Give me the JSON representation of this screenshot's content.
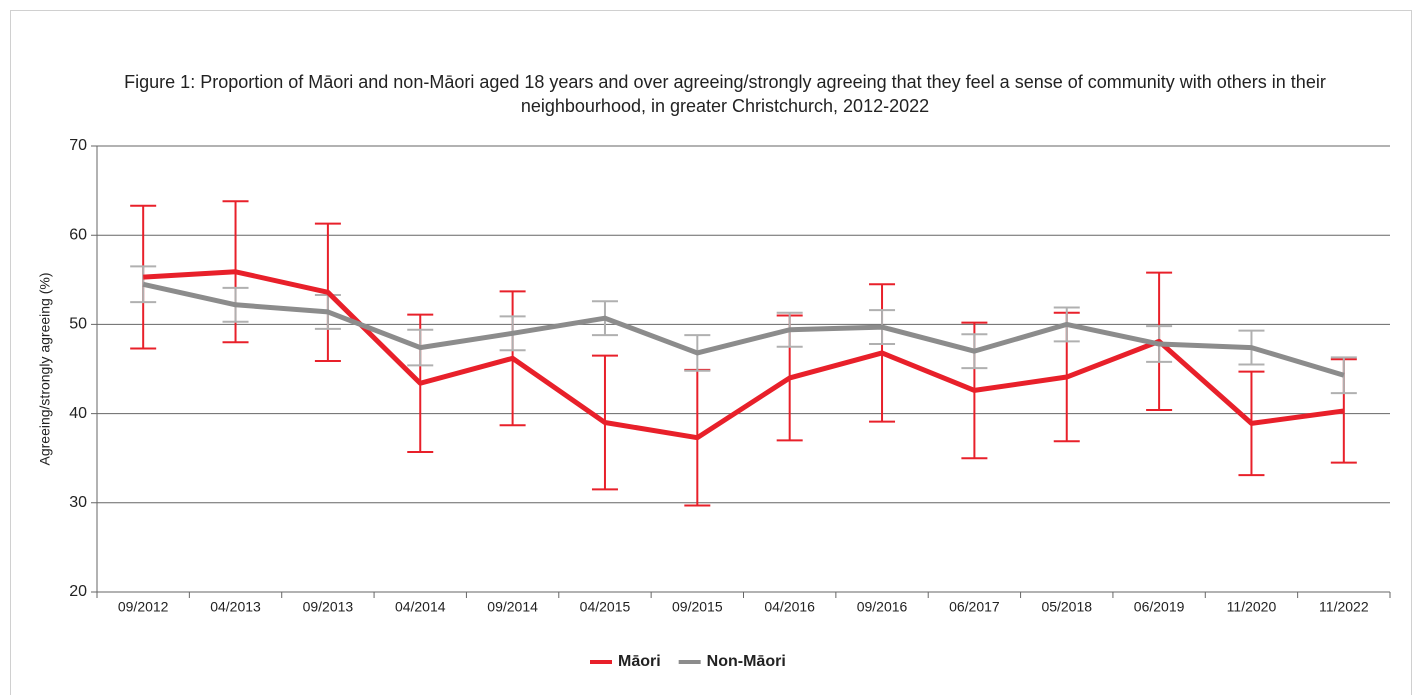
{
  "chart_data": {
    "type": "line",
    "title": "Figure 1: Proportion of Māori and non-Māori aged 18 years and over agreeing/strongly agreeing that they feel a sense of community with others in their neighbourhood, in greater Christchurch, 2012-2022",
    "y_label": "Agreeing/strongly agreeing (%)",
    "categories": [
      "09/2012",
      "04/2013",
      "09/2013",
      "04/2014",
      "09/2014",
      "04/2015",
      "09/2015",
      "04/2016",
      "09/2016",
      "06/2017",
      "05/2018",
      "06/2019",
      "11/2020",
      "11/2022"
    ],
    "series": [
      {
        "name": "Māori",
        "color": "#e8202a",
        "error_color": "#e8202a",
        "values": [
          55.3,
          55.9,
          53.6,
          43.4,
          46.2,
          39.0,
          37.3,
          44.0,
          46.8,
          42.6,
          44.1,
          48.1,
          38.9,
          40.3
        ],
        "errors": [
          8.0,
          7.9,
          7.7,
          7.7,
          7.5,
          7.5,
          7.6,
          7.0,
          7.7,
          7.6,
          7.2,
          7.7,
          5.8,
          5.8
        ]
      },
      {
        "name": "Non-Māori",
        "color": "#8c8c8c",
        "error_color": "#b0b0b0",
        "values": [
          54.5,
          52.2,
          51.4,
          47.4,
          49.0,
          50.7,
          46.8,
          49.4,
          49.7,
          47.0,
          50.0,
          47.8,
          47.4,
          44.3
        ],
        "errors": [
          2.0,
          1.9,
          1.9,
          2.0,
          1.9,
          1.9,
          2.0,
          1.9,
          1.9,
          1.9,
          1.9,
          2.0,
          1.9,
          2.0
        ]
      }
    ],
    "ylim": [
      20,
      70
    ],
    "yticks": [
      20,
      30,
      40,
      50,
      60,
      70
    ],
    "grid": true,
    "legend": "bottom"
  }
}
